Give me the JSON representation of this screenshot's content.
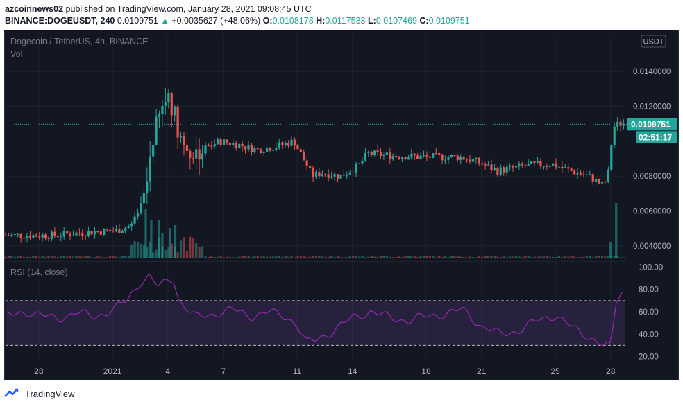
{
  "header": {
    "author": "azcoinnews02",
    "published_text": " published on TradingView.com, January 28, 2021 09:08:45 UTC"
  },
  "ohlc": {
    "symbol": "BINANCE:DOGEUSDT, 240",
    "last": "0.0109751",
    "arrow": "▲",
    "change": "+0.0035627 (+48.06%)",
    "o_label": "O:",
    "o": "0.0108178",
    "h_label": "H:",
    "h": "0.0117533",
    "l_label": "L:",
    "l": "0.0107469",
    "c_label": "C:",
    "c": "0.0109751"
  },
  "chart_data": {
    "type": "candlestick",
    "title": "Dogecoin / TetherUS, 4h, BINANCE",
    "volume_label": "Vol",
    "currency_badge": "USDT",
    "price_ticks": [
      "0.0140000",
      "0.0120000",
      "0.0080000",
      "0.0060000",
      "0.0040000"
    ],
    "price_tick_values": [
      0.014,
      0.012,
      0.008,
      0.006,
      0.004
    ],
    "ylim": [
      0.0032,
      0.0152
    ],
    "last_price_label": "0.0109751",
    "last_price": 0.0109751,
    "countdown_label": "02:51:17",
    "x_tick_labels": [
      "28",
      "2021",
      "4",
      "7",
      "11",
      "14",
      "18",
      "21",
      "25",
      "28"
    ],
    "x_tick_days": [
      -4,
      0,
      3,
      6,
      10,
      13,
      17,
      20,
      24,
      27
    ],
    "x_range_days": [
      -5.8,
      27.8
    ],
    "price_path_days": [
      -5.8,
      -3,
      -1,
      0.5,
      1.2,
      1.7,
      2.0,
      2.3,
      2.6,
      2.9,
      3.2,
      3.6,
      4.0,
      4.5,
      5.0,
      6.0,
      7.0,
      8.0,
      9.0,
      10.0,
      10.5,
      11.0,
      11.5,
      12.5,
      13.5,
      14.0,
      15.0,
      17.0,
      19.0,
      20.0,
      21.0,
      22.5,
      24.0,
      25.0,
      26.0,
      26.7,
      27.0,
      27.3,
      27.6
    ],
    "price_path_values": [
      0.0046,
      0.0046,
      0.0048,
      0.0049,
      0.0052,
      0.006,
      0.0075,
      0.01,
      0.011,
      0.012,
      0.0128,
      0.0112,
      0.0098,
      0.0093,
      0.0095,
      0.01,
      0.0098,
      0.0095,
      0.0097,
      0.01,
      0.009,
      0.008,
      0.0082,
      0.008,
      0.0086,
      0.0093,
      0.0092,
      0.0091,
      0.0091,
      0.0088,
      0.0083,
      0.0086,
      0.0087,
      0.0083,
      0.008,
      0.0075,
      0.0078,
      0.0108,
      0.011
    ],
    "volume_spikes": [
      {
        "day": 1.8,
        "volume": 0.9
      },
      {
        "day": 2.1,
        "volume": 0.7
      },
      {
        "day": 2.5,
        "volume": 0.7
      },
      {
        "day": 2.7,
        "volume": 0.45
      },
      {
        "day": 3.1,
        "volume": 0.55
      },
      {
        "day": 3.4,
        "volume": 0.6
      },
      {
        "day": 27.3,
        "volume": 1.0
      },
      {
        "day": 27.0,
        "volume": 0.3
      }
    ],
    "rsi_label": "RSI (14, close)",
    "rsi_ticks": [
      "100.00",
      "80.00",
      "60.00",
      "40.00",
      "20.00"
    ],
    "rsi_tick_values": [
      100,
      80,
      60,
      40,
      20
    ],
    "rsi_ylim": [
      16,
      104
    ],
    "rsi_overbought": 70,
    "rsi_oversold": 30,
    "rsi_days": [
      -5.8,
      -4.5,
      -3,
      -2,
      -1,
      0,
      0.8,
      1.5,
      2.0,
      2.5,
      3.0,
      3.3,
      3.6,
      4.5,
      5.5,
      6.5,
      7.5,
      8.5,
      9.5,
      10.0,
      10.5,
      11.0,
      12.0,
      13.0,
      14.0,
      15.0,
      16.0,
      17.0,
      18.0,
      19.0,
      20.0,
      21.0,
      22.0,
      23.0,
      24.0,
      25.0,
      26.0,
      26.6,
      27.0,
      27.3,
      27.6
    ],
    "rsi_values": [
      56,
      60,
      53,
      60,
      55,
      62,
      70,
      87,
      92,
      82,
      88,
      90,
      70,
      55,
      58,
      62,
      56,
      60,
      55,
      48,
      32,
      35,
      43,
      55,
      60,
      55,
      52,
      56,
      58,
      62,
      47,
      40,
      43,
      52,
      57,
      45,
      36,
      30,
      28,
      70,
      78
    ]
  },
  "footer": {
    "brand": "TradingView"
  },
  "colors": {
    "background": "#131722",
    "up": "#26a69a",
    "down": "#ef5350",
    "rsi": "#9c27b0",
    "rsi_band": "#7e57c2",
    "grid": "#1e222d",
    "text": "#b2b5be"
  }
}
